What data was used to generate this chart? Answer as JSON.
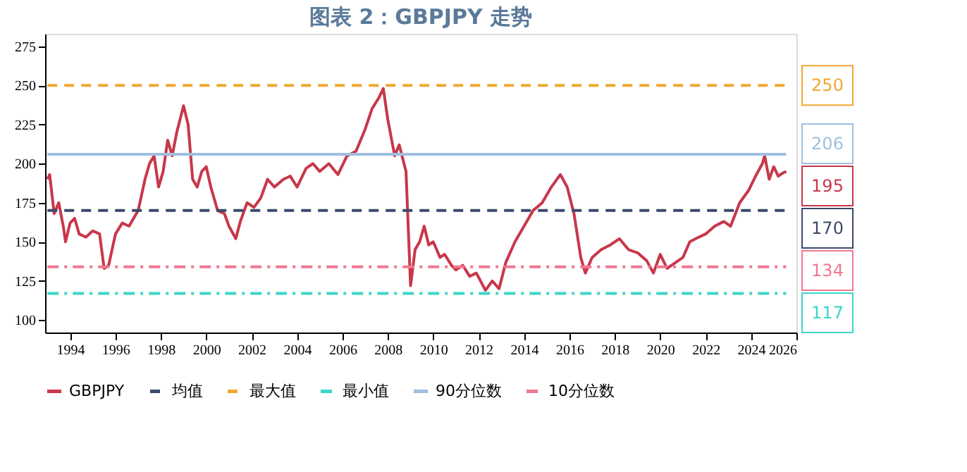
{
  "chart_data": {
    "type": "line",
    "title": "图表 2：GBPJPY 走势",
    "xlim": [
      1992.9,
      2026
    ],
    "xticks": [
      1994,
      1996,
      1998,
      2000,
      2002,
      2004,
      2006,
      2008,
      2010,
      2012,
      2014,
      2016,
      2018,
      2020,
      2022,
      2024,
      2026
    ],
    "ylim": [
      92,
      283
    ],
    "yticks": [
      100,
      125,
      150,
      175,
      200,
      225,
      250,
      275
    ],
    "grid": false,
    "legend": "bottom",
    "series": [
      {
        "name": "GBPJPY",
        "type": "line",
        "color": "#c8374a",
        "line_style": "solid",
        "x": [
          1993.0,
          1993.1,
          1993.3,
          1993.5,
          1993.7,
          1993.8,
          1994.0,
          1994.2,
          1994.4,
          1994.7,
          1995.0,
          1995.3,
          1995.5,
          1995.7,
          1996.0,
          1996.3,
          1996.6,
          1997.0,
          1997.3,
          1997.5,
          1997.7,
          1997.9,
          1998.1,
          1998.3,
          1998.5,
          1998.7,
          1999.0,
          1999.2,
          1999.4,
          1999.6,
          1999.8,
          2000.0,
          2000.2,
          2000.5,
          2000.8,
          2001.0,
          2001.3,
          2001.5,
          2001.8,
          2002.1,
          2002.4,
          2002.7,
          2003.0,
          2003.4,
          2003.7,
          2004.0,
          2004.4,
          2004.7,
          2005.0,
          2005.4,
          2005.8,
          2006.2,
          2006.6,
          2007.0,
          2007.3,
          2007.6,
          2007.8,
          2008.0,
          2008.3,
          2008.5,
          2008.8,
          2009.0,
          2009.2,
          2009.4,
          2009.6,
          2009.8,
          2010.0,
          2010.3,
          2010.5,
          2010.8,
          2011.0,
          2011.3,
          2011.6,
          2011.9,
          2012.3,
          2012.6,
          2012.9,
          2013.2,
          2013.6,
          2014.0,
          2014.4,
          2014.8,
          2015.2,
          2015.6,
          2015.9,
          2016.2,
          2016.5,
          2016.7,
          2017.0,
          2017.4,
          2017.8,
          2018.2,
          2018.6,
          2019.0,
          2019.4,
          2019.7,
          2020.0,
          2020.3,
          2020.7,
          2021.0,
          2021.3,
          2021.7,
          2022.0,
          2022.4,
          2022.8,
          2023.1,
          2023.5,
          2023.9,
          2024.2,
          2024.5,
          2024.6,
          2024.8,
          2025.0,
          2025.2,
          2025.4,
          2025.55
        ],
        "values": [
          190,
          193,
          168,
          175,
          160,
          150,
          162,
          165,
          155,
          153,
          157,
          155,
          133,
          135,
          155,
          162,
          160,
          170,
          190,
          200,
          205,
          185,
          195,
          215,
          205,
          220,
          237,
          225,
          190,
          185,
          195,
          198,
          185,
          170,
          168,
          160,
          152,
          163,
          175,
          172,
          178,
          190,
          185,
          190,
          192,
          185,
          197,
          200,
          195,
          200,
          193,
          205,
          208,
          222,
          235,
          242,
          248,
          228,
          205,
          212,
          195,
          122,
          145,
          150,
          160,
          148,
          150,
          140,
          142,
          135,
          132,
          135,
          128,
          130,
          119,
          125,
          120,
          137,
          150,
          160,
          170,
          175,
          185,
          193,
          185,
          168,
          140,
          130,
          140,
          145,
          148,
          152,
          145,
          143,
          138,
          130,
          142,
          133,
          137,
          140,
          150,
          153,
          155,
          160,
          163,
          160,
          175,
          183,
          192,
          200,
          205,
          190,
          198,
          192,
          194,
          195
        ],
        "value_labels": [
          null,
          null,
          null,
          null,
          null,
          null,
          null,
          null,
          null,
          null,
          null,
          null,
          null,
          null,
          null,
          null,
          null,
          null,
          null,
          null,
          null,
          null,
          null,
          null,
          null,
          null,
          null,
          null,
          null,
          null,
          null,
          null,
          null,
          null,
          null,
          null,
          null,
          null,
          null,
          null,
          null,
          null,
          null,
          null,
          null,
          null,
          null,
          null,
          null,
          null,
          null,
          null,
          null,
          null,
          null,
          null,
          null,
          null,
          null,
          null,
          null,
          null,
          null,
          null,
          null,
          null,
          null,
          null,
          null,
          null,
          null,
          null,
          null,
          null,
          null,
          null,
          null,
          null,
          null,
          null,
          null,
          null,
          null,
          null,
          null,
          null,
          null,
          null,
          null,
          null,
          null,
          null,
          null,
          null,
          null,
          null,
          null,
          null,
          null,
          null,
          null,
          null,
          null,
          null,
          null,
          null,
          null,
          null,
          null,
          null,
          null,
          null,
          null,
          null,
          null,
          "195"
        ]
      },
      {
        "name": "均值",
        "type": "line",
        "color": "#3b4a6b",
        "line_style": "dashed",
        "x": [
          1993.0,
          2025.55
        ],
        "values": [
          170,
          170
        ],
        "value_labels": [
          null,
          "170"
        ]
      },
      {
        "name": "最大值",
        "type": "line",
        "color": "#f0a830",
        "line_style": "dashed",
        "x": [
          1993.0,
          2025.55
        ],
        "values": [
          250,
          250
        ],
        "value_labels": [
          null,
          "250"
        ]
      },
      {
        "name": "最小值",
        "type": "line",
        "color": "#3dd6c8",
        "line_style": "dotted",
        "x": [
          1993.0,
          2025.55
        ],
        "values": [
          117,
          117
        ],
        "value_labels": [
          null,
          "117"
        ]
      },
      {
        "name": "90分位数",
        "type": "line",
        "color": "#9ec0e0",
        "line_style": "solid",
        "x": [
          1993.0,
          2025.55
        ],
        "values": [
          206,
          206
        ],
        "value_labels": [
          null,
          "206"
        ]
      },
      {
        "name": "10分位数",
        "type": "line",
        "color": "#f07890",
        "line_style": "dotted",
        "x": [
          1993.0,
          2025.55
        ],
        "values": [
          134,
          134
        ],
        "value_labels": [
          null,
          "134"
        ]
      }
    ]
  }
}
